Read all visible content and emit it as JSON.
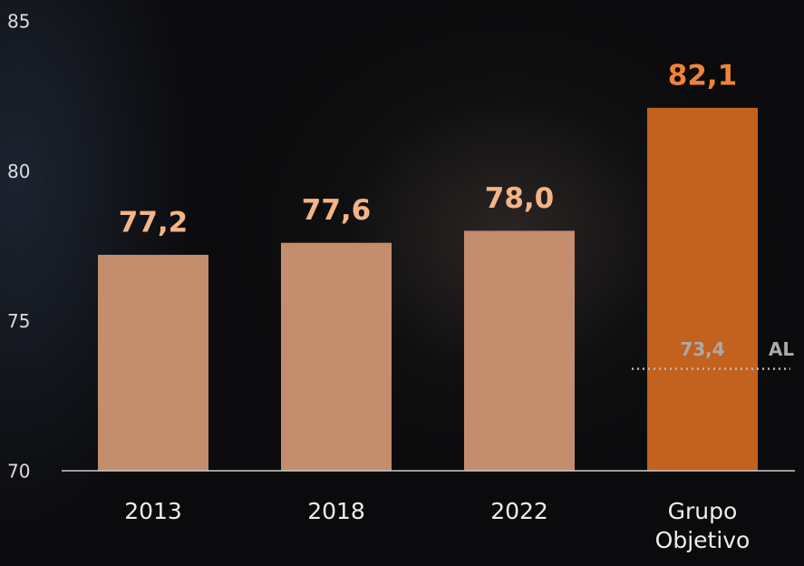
{
  "chart_data": {
    "type": "bar",
    "categories": [
      "2013",
      "2018",
      "2022",
      "Grupo Objetivo"
    ],
    "values": [
      77.2,
      77.6,
      78.0,
      82.1
    ],
    "value_labels": [
      "77,2",
      "77,6",
      "78,0",
      "82,1"
    ],
    "colors": [
      "#c48d6d",
      "#c48d6d",
      "#c48d6d",
      "#c3611f"
    ],
    "label_colors": [
      "#f3b486",
      "#f3b486",
      "#f3b486",
      "#f0833a"
    ],
    "ylim": [
      70,
      85
    ],
    "yticks": [
      70,
      75,
      80,
      85
    ],
    "grid": false,
    "reference_line": {
      "value": 73.4,
      "label": "73,4",
      "name": "AL"
    }
  }
}
